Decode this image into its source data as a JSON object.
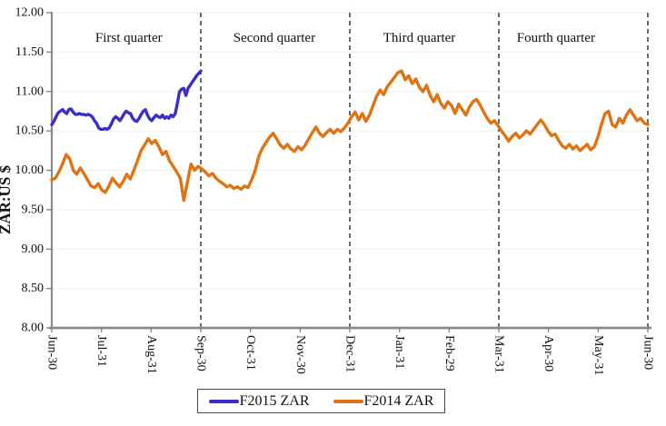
{
  "page": {
    "background": "#ffffff"
  },
  "chart_data": {
    "type": "line",
    "title": "",
    "ylabel": "ZAR:US $",
    "ylim": [
      8.0,
      12.0
    ],
    "grid": "horizontal-light",
    "legend_position": "bottom",
    "yticks": [
      {
        "value": 12.0,
        "label": "12.00"
      },
      {
        "value": 11.5,
        "label": "11.50"
      },
      {
        "value": 11.0,
        "label": "11.00"
      },
      {
        "value": 10.5,
        "label": "10.50"
      },
      {
        "value": 10.0,
        "label": "10.00"
      },
      {
        "value": 9.5,
        "label": "9.50"
      },
      {
        "value": 9.0,
        "label": "9.00"
      },
      {
        "value": 8.5,
        "label": "8.50"
      },
      {
        "value": 8.0,
        "label": "8.00"
      }
    ],
    "x_tick_labels": [
      "Jun-30",
      "Jul-31",
      "Aug-31",
      "Sep-30",
      "Oct-31",
      "Nov-30",
      "Dec-31",
      "Jan-31",
      "Feb-29",
      "Mar-31",
      "Apr-30",
      "May-31",
      "Jun-30"
    ],
    "x_range_months": [
      0,
      12
    ],
    "quarter_dividers_months": [
      3,
      6,
      9,
      12
    ],
    "quarter_labels": [
      {
        "label": "First quarter",
        "center_month": 1.55
      },
      {
        "label": "Second quarter",
        "center_month": 4.48
      },
      {
        "label": "Third quarter",
        "center_month": 7.4
      },
      {
        "label": "Fourth quarter",
        "center_month": 10.15
      }
    ],
    "colors": {
      "axis": "#8a8a8a",
      "grid": "#f0f0f0",
      "divider": "#1b1b1b",
      "text": "#111111"
    },
    "series": [
      {
        "name": "F2015 ZAR",
        "color": "#3b2fc8",
        "x_start": 0,
        "x_end": 3,
        "values": [
          10.58,
          10.62,
          10.68,
          10.73,
          10.75,
          10.77,
          10.74,
          10.72,
          10.77,
          10.78,
          10.74,
          10.71,
          10.71,
          10.72,
          10.71,
          10.71,
          10.7,
          10.71,
          10.7,
          10.68,
          10.63,
          10.6,
          10.54,
          10.52,
          10.52,
          10.53,
          10.52,
          10.54,
          10.59,
          10.65,
          10.68,
          10.66,
          10.63,
          10.67,
          10.72,
          10.75,
          10.73,
          10.72,
          10.66,
          10.63,
          10.62,
          10.66,
          10.71,
          10.75,
          10.77,
          10.7,
          10.65,
          10.63,
          10.67,
          10.7,
          10.68,
          10.67,
          10.7,
          10.66,
          10.68,
          10.66,
          10.7,
          10.68,
          10.72,
          10.85,
          11.0,
          11.03,
          11.04,
          10.95,
          11.04,
          11.08,
          11.12,
          11.16,
          11.2,
          11.23,
          11.26
        ]
      },
      {
        "name": "F2014 ZAR",
        "color": "#e07412",
        "x_start": 0,
        "x_end": 12,
        "values": [
          9.88,
          9.9,
          9.98,
          10.08,
          10.2,
          10.15,
          10.0,
          9.95,
          10.03,
          9.96,
          9.88,
          9.8,
          9.78,
          9.83,
          9.75,
          9.72,
          9.8,
          9.9,
          9.84,
          9.79,
          9.86,
          9.95,
          9.89,
          10.0,
          10.12,
          10.25,
          10.32,
          10.4,
          10.34,
          10.38,
          10.3,
          10.2,
          10.24,
          10.12,
          10.05,
          9.98,
          9.9,
          9.62,
          9.85,
          10.08,
          10.0,
          10.05,
          10.02,
          9.98,
          9.93,
          9.96,
          9.9,
          9.86,
          9.83,
          9.79,
          9.81,
          9.77,
          9.79,
          9.76,
          9.8,
          9.78,
          9.88,
          10.0,
          10.18,
          10.28,
          10.35,
          10.42,
          10.47,
          10.4,
          10.32,
          10.28,
          10.33,
          10.27,
          10.24,
          10.3,
          10.26,
          10.32,
          10.4,
          10.48,
          10.55,
          10.47,
          10.43,
          10.48,
          10.52,
          10.47,
          10.52,
          10.49,
          10.54,
          10.6,
          10.68,
          10.74,
          10.64,
          10.72,
          10.62,
          10.7,
          10.82,
          10.94,
          11.02,
          10.96,
          11.06,
          11.12,
          11.18,
          11.24,
          11.26,
          11.15,
          11.2,
          11.1,
          11.16,
          11.05,
          11.0,
          11.08,
          10.95,
          10.87,
          10.96,
          10.85,
          10.79,
          10.87,
          10.82,
          10.72,
          10.84,
          10.77,
          10.7,
          10.8,
          10.87,
          10.9,
          10.83,
          10.74,
          10.66,
          10.6,
          10.63,
          10.57,
          10.5,
          10.44,
          10.37,
          10.43,
          10.47,
          10.41,
          10.45,
          10.5,
          10.46,
          10.52,
          10.58,
          10.64,
          10.58,
          10.5,
          10.44,
          10.46,
          10.38,
          10.31,
          10.28,
          10.33,
          10.27,
          10.31,
          10.25,
          10.29,
          10.33,
          10.26,
          10.3,
          10.42,
          10.58,
          10.72,
          10.75,
          10.58,
          10.55,
          10.66,
          10.6,
          10.7,
          10.77,
          10.7,
          10.63,
          10.66,
          10.6,
          10.58
        ]
      }
    ]
  },
  "legend": {
    "items": [
      {
        "label": "F2015 ZAR"
      },
      {
        "label": "F2014 ZAR"
      }
    ]
  }
}
